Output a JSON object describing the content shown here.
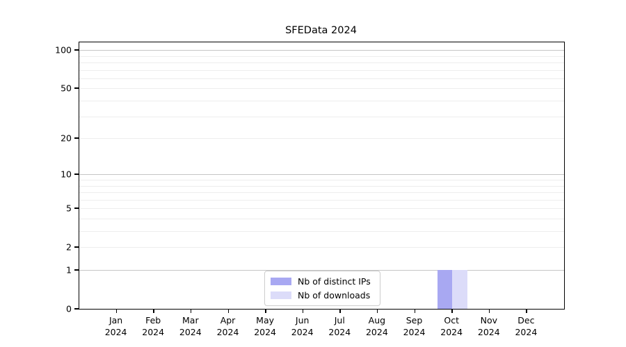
{
  "chart_data": {
    "type": "bar",
    "title": "SFEData 2024",
    "xlabel": "",
    "ylabel": "",
    "categories": [
      "Jan",
      "Feb",
      "Mar",
      "Apr",
      "May",
      "Jun",
      "Jul",
      "Aug",
      "Sep",
      "Oct",
      "Nov",
      "Dec"
    ],
    "x_tick_year": "2024",
    "series": [
      {
        "name": "Nb of distinct IPs",
        "color": "#a8a8f2",
        "values": [
          0,
          0,
          0,
          0,
          0,
          0,
          0,
          0,
          0,
          1,
          0,
          0
        ]
      },
      {
        "name": "Nb of downloads",
        "color": "#dcdcf9",
        "values": [
          0,
          0,
          0,
          0,
          0,
          0,
          0,
          0,
          0,
          1,
          0,
          0
        ]
      }
    ],
    "yscale": "log1p",
    "ylim": [
      0,
      115
    ],
    "y_ticks": [
      0,
      1,
      2,
      5,
      10,
      20,
      50,
      100
    ],
    "y_major_gridlines": [
      1,
      10,
      100
    ],
    "y_minor_gridlines": [
      2,
      3,
      4,
      5,
      6,
      7,
      8,
      9,
      20,
      30,
      40,
      50,
      60,
      70,
      80,
      90
    ],
    "grid": "on",
    "legend_position": "lower center inside plot"
  },
  "colors": {
    "background": "#ffffff",
    "axis": "#000000",
    "text": "#000000",
    "major_grid": "#c5c5c5",
    "minor_grid": "#ededed",
    "legend_border": "#cccccc"
  }
}
